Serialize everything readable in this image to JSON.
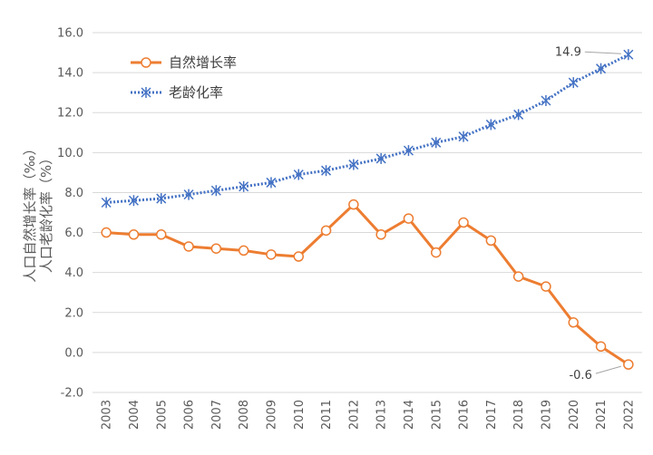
{
  "chart_data": {
    "type": "line",
    "title": "",
    "xlabel": "",
    "ylabel_line1": "人口自然增长率（‰）",
    "ylabel_line2": "人口老龄化率（%）",
    "ylim": [
      -2.0,
      16.0
    ],
    "yticks": [
      "-2.0",
      "0.0",
      "2.0",
      "4.0",
      "6.0",
      "8.0",
      "10.0",
      "12.0",
      "14.0",
      "16.0"
    ],
    "categories": [
      "2003",
      "2004",
      "2005",
      "2006",
      "2007",
      "2008",
      "2009",
      "2010",
      "2011",
      "2012",
      "2013",
      "2014",
      "2015",
      "2016",
      "2017",
      "2018",
      "2019",
      "2020",
      "2021",
      "2022"
    ],
    "grid": true,
    "legend_position": "top-left",
    "series": [
      {
        "name": "自然增长率",
        "color": "#ED7D31",
        "marker": "circle",
        "values": [
          6.0,
          5.9,
          5.9,
          5.3,
          5.2,
          5.1,
          4.9,
          4.8,
          6.1,
          7.4,
          5.9,
          6.7,
          5.0,
          6.5,
          5.6,
          3.8,
          3.3,
          1.5,
          0.3,
          -0.6
        ]
      },
      {
        "name": "老龄化率",
        "color": "#4472C4",
        "marker": "asterisk",
        "values": [
          7.5,
          7.6,
          7.7,
          7.9,
          8.1,
          8.3,
          8.5,
          8.9,
          9.1,
          9.4,
          9.7,
          10.1,
          10.5,
          10.8,
          11.4,
          11.9,
          12.6,
          13.5,
          14.2,
          14.9
        ]
      }
    ],
    "annotations": [
      {
        "text": "14.9",
        "series": 1,
        "index": 19
      },
      {
        "text": "-0.6",
        "series": 0,
        "index": 19
      }
    ]
  }
}
